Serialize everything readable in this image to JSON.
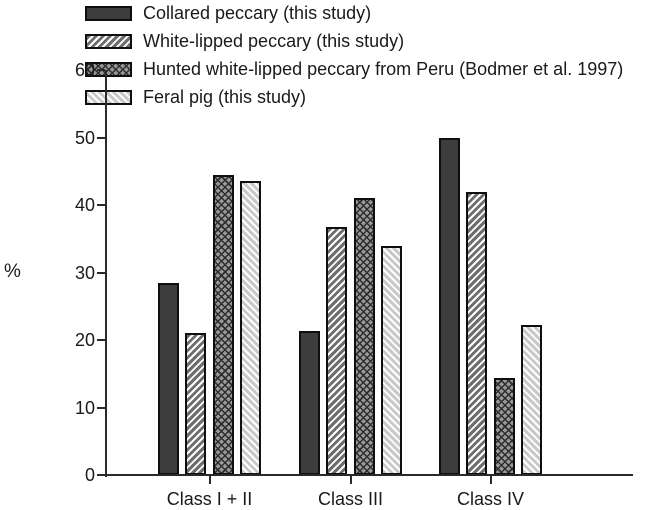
{
  "chart_data": {
    "type": "bar",
    "title": "",
    "xlabel": "",
    "ylabel": "%",
    "ylim": [
      0,
      60
    ],
    "yticks": [
      0,
      10,
      20,
      30,
      40,
      50,
      60
    ],
    "grid": false,
    "legend_position": "top-left",
    "categories": [
      "Class I + II",
      "Class III",
      "Class IV"
    ],
    "series": [
      {
        "name": "Collared peccary (this study)",
        "pattern": "solid",
        "fill": "#3d3d3d",
        "stripe": "#3d3d3d",
        "values": [
          28.5,
          21.4,
          50.0
        ]
      },
      {
        "name": "White-lipped peccary (this study)",
        "pattern": "diagonal-forward",
        "fill": "#6e6e6e",
        "stripe": "#ffffff",
        "values": [
          21.0,
          36.7,
          42.0
        ]
      },
      {
        "name": "Hunted white-lipped peccary from Peru (Bodmer et al. 1997)",
        "pattern": "crosshatch",
        "fill": "#989898",
        "stripe": "#2d2d2d",
        "values": [
          44.5,
          41.0,
          14.3
        ]
      },
      {
        "name": "Feral pig (this study)",
        "pattern": "diagonal-back",
        "fill": "#c9c9c9",
        "stripe": "#ffffff",
        "values": [
          43.5,
          34.0,
          22.2
        ]
      }
    ],
    "axis_color": "#2a2a2a",
    "text_color": "#1a1a1a"
  }
}
